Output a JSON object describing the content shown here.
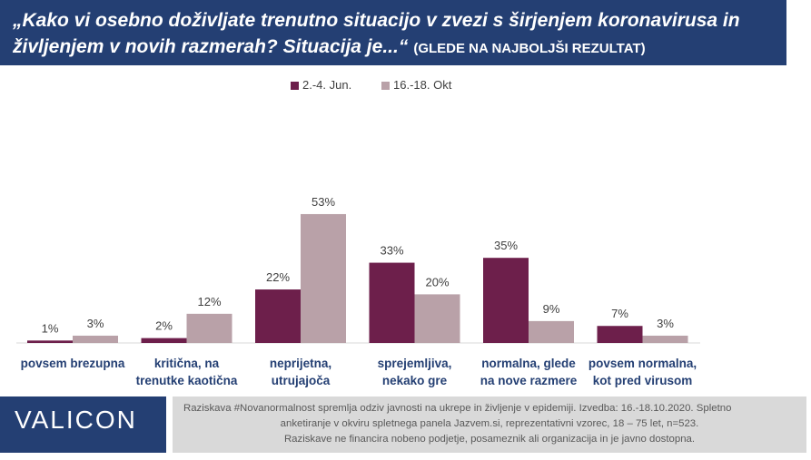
{
  "header": {
    "question_line1": "„Kako vi osebno doživljate trenutno situacijo v zvezi s širjenjem koronavirusa in",
    "question_line2": "življenjem v novih razmerah? Situacija je...“",
    "question_tag": "(GLEDE NA NAJBOLJŠI REZULTAT)"
  },
  "chart_data": {
    "type": "bar",
    "title": "",
    "xlabel": "",
    "ylabel": "",
    "ylim": [
      0,
      60
    ],
    "grid": false,
    "legend_position": "top-center",
    "categories": [
      [
        "povsem brezupna"
      ],
      [
        "kritična, na",
        "trenutke kaotična"
      ],
      [
        "neprijetna,",
        "utrujajoča"
      ],
      [
        "sprejemljiva,",
        "nekako gre"
      ],
      [
        "normalna, glede",
        "na nove razmere"
      ],
      [
        "povsem normalna,",
        "kot pred virusom"
      ]
    ],
    "series": [
      {
        "name": "2.-4. Jun.",
        "color": "#6d1f4b",
        "values": [
          1,
          2,
          22,
          33,
          35,
          7
        ],
        "labels": [
          "1%",
          "2%",
          "22%",
          "33%",
          "35%",
          "7%"
        ]
      },
      {
        "name": "16.-18. Okt",
        "color": "#b9a1a8",
        "values": [
          3,
          12,
          53,
          20,
          9,
          3
        ],
        "labels": [
          "3%",
          "12%",
          "53%",
          "20%",
          "9%",
          "3%"
        ]
      }
    ]
  },
  "footer": {
    "logo": "VALICON",
    "note_line1": "Raziskava #Novanormalnost spremlja odziv javnosti na ukrepe in življenje v epidemiji. Izvedba: 16.-18.10.2020. Spletno",
    "note_line2": "anketiranje v okviru spletnega panela Jazvem.si, reprezentativni vzorec, 18 – 75 let, n=523.",
    "note_line3": "Raziskave ne financira nobeno podjetje, posameznik ali organizacija in je javno dostopna."
  }
}
